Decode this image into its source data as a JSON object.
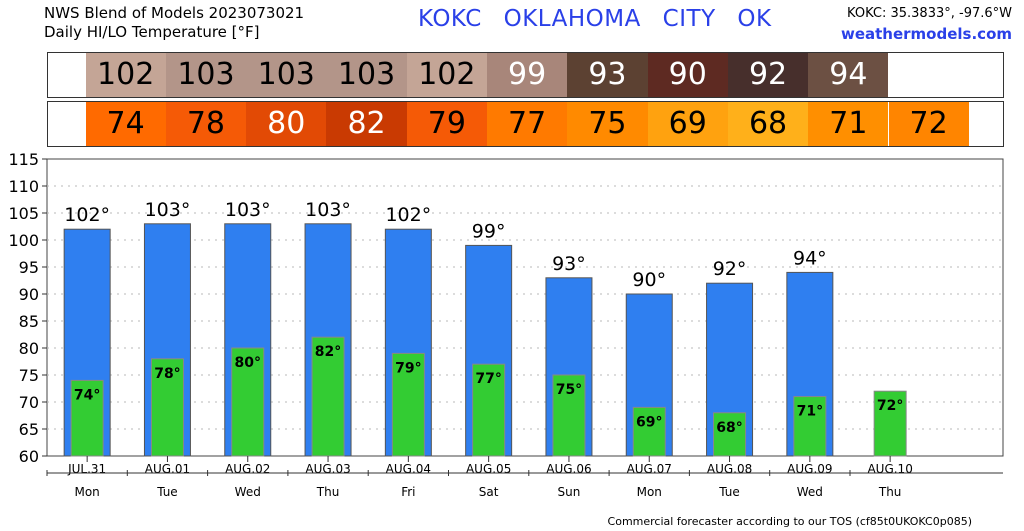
{
  "header": {
    "title_line1": "NWS Blend of Models 2023073021",
    "title_line2": "Daily HI/LO Temperature [°F]",
    "station_center": "KOKC   OKLAHOMA CITY   OK",
    "station_coords": "KOKC: 35.3833°, -97.6°W",
    "site": "weathermodels.com"
  },
  "footer": "Commercial forecaster according to our TOS (cf85t0UKOKC0p085)",
  "strips": {
    "hi_colors": [
      "#c4a596",
      "#b39589",
      "#b39589",
      "#b39589",
      "#c4a596",
      "#a8867a",
      "#5c4132",
      "#5e2a22",
      "#472f2c",
      "#6c5043"
    ],
    "hi_text_colors": [
      "#000000",
      "#000000",
      "#000000",
      "#000000",
      "#000000",
      "#ffffff",
      "#ffffff",
      "#ffffff",
      "#ffffff",
      "#ffffff"
    ],
    "lo_colors": [
      "#ff6a00",
      "#f55a06",
      "#e24a05",
      "#c93a02",
      "#f55a06",
      "#ff7a00",
      "#ff8a00",
      "#ffa20f",
      "#ffb01a",
      "#ff8f00",
      "#ff8500"
    ],
    "lo_text_colors": [
      "#000000",
      "#000000",
      "#ffffff",
      "#ffffff",
      "#000000",
      "#000000",
      "#000000",
      "#000000",
      "#000000",
      "#000000",
      "#000000"
    ]
  },
  "chart_data": {
    "type": "bar",
    "categories": [
      "JUL.31",
      "AUG.01",
      "AUG.02",
      "AUG.03",
      "AUG.04",
      "AUG.05",
      "AUG.06",
      "AUG.07",
      "AUG.08",
      "AUG.09",
      "AUG.10"
    ],
    "days": [
      "Mon",
      "Tue",
      "Wed",
      "Thu",
      "Fri",
      "Sat",
      "Sun",
      "Mon",
      "Tue",
      "Wed",
      "Thu"
    ],
    "series": [
      {
        "name": "HI",
        "color": "#2f7ff0",
        "values": [
          102,
          103,
          103,
          103,
          102,
          99,
          93,
          90,
          92,
          94,
          null
        ],
        "labels": [
          "102°",
          "103°",
          "103°",
          "103°",
          "102°",
          "99°",
          "93°",
          "90°",
          "92°",
          "94°",
          ""
        ]
      },
      {
        "name": "LO",
        "color": "#33cc33",
        "values": [
          74,
          78,
          80,
          82,
          79,
          77,
          75,
          69,
          68,
          71,
          72
        ],
        "labels": [
          "74°",
          "78°",
          "80°",
          "82°",
          "79°",
          "77°",
          "75°",
          "69°",
          "68°",
          "71°",
          "72°"
        ]
      }
    ],
    "ylim": [
      60,
      115
    ],
    "yticks": [
      60,
      65,
      70,
      75,
      80,
      85,
      90,
      95,
      100,
      105,
      110,
      115
    ],
    "grid": true
  }
}
